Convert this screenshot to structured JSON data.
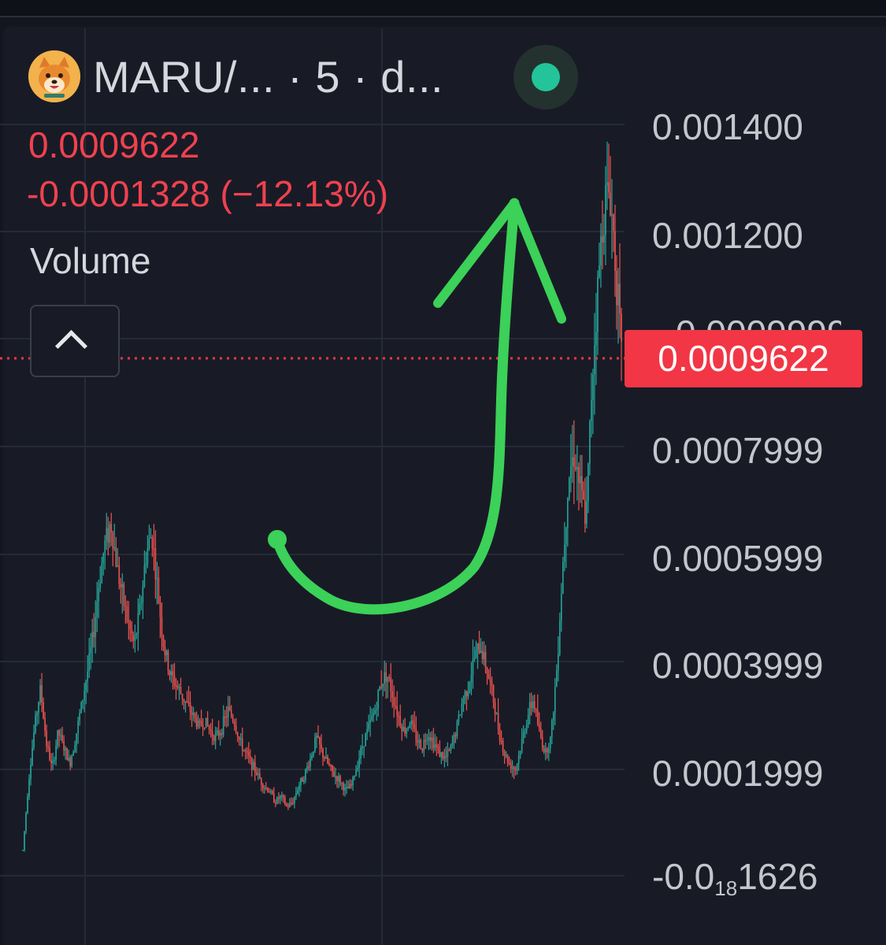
{
  "header": {
    "symbol": "MARU/... · 5 · d...",
    "logo": "shiba-inu-dog-logo",
    "live_indicator_color": "#23c49a"
  },
  "quote": {
    "price": "0.0009622",
    "change": "-0.0001328 (−12.13%)"
  },
  "indicator": {
    "label": "Volume"
  },
  "collapse_icon": "chevron-up-icon",
  "price_axis": {
    "labels": [
      "0.001400",
      "0.001200",
      "0.0007999",
      "0.0005999",
      "0.0003999",
      "0.0001999"
    ],
    "bottom_label": {
      "prefix": "-0.0",
      "subscript": "18",
      "suffix": "1626"
    },
    "current_price_tag": "0.0009622",
    "current_price_tag_color": "#f23645"
  },
  "colors": {
    "background": "#181b26",
    "up_candle": "#26a69a",
    "down_candle": "#ef5350",
    "annotation_arrow": "#3cd158",
    "price_line": "#f23645"
  },
  "chart_data": {
    "type": "candlestick",
    "interval": "5",
    "y_axis_labels": [
      0.0014,
      0.0012,
      0.0007999,
      0.0005999,
      0.0003999,
      0.0001999
    ],
    "ylim": [
      0.0,
      0.00142
    ],
    "last_price": 0.0009622,
    "change": -0.0001328,
    "change_pct": -12.13,
    "close_series": [
      5e-05,
      0.00018,
      0.00028,
      0.00035,
      0.00025,
      0.0002,
      0.00027,
      0.00024,
      0.00021,
      0.00026,
      0.00032,
      0.00038,
      0.00045,
      0.00055,
      0.00062,
      0.00066,
      0.00058,
      0.00052,
      0.00047,
      0.00043,
      0.0005,
      0.0006,
      0.00064,
      0.00053,
      0.00043,
      0.00038,
      0.00036,
      0.00034,
      0.00032,
      0.0003,
      0.00028,
      0.00029,
      0.00027,
      0.00026,
      0.00028,
      0.00031,
      0.00029,
      0.00025,
      0.00023,
      0.00021,
      0.00019,
      0.00017,
      0.00016,
      0.00014,
      0.00015,
      0.00013,
      0.00014,
      0.00017,
      0.00019,
      0.00022,
      0.00026,
      0.00023,
      0.00021,
      0.00019,
      0.00018,
      0.00016,
      0.00017,
      0.00021,
      0.00025,
      0.00028,
      0.00031,
      0.00036,
      0.00038,
      0.00034,
      0.0003,
      0.00027,
      0.00029,
      0.00026,
      0.00024,
      0.00027,
      0.00025,
      0.00023,
      0.00022,
      0.00024,
      0.00028,
      0.00033,
      0.00036,
      0.00041,
      0.00043,
      0.00039,
      0.00034,
      0.00028,
      0.00023,
      0.00021,
      0.0002,
      0.00025,
      0.0003,
      0.00033,
      0.00027,
      0.00023,
      0.00026,
      0.00039,
      0.00058,
      0.00075,
      0.00079,
      0.00072,
      0.00066,
      0.00093,
      0.0011,
      0.00125,
      0.00128,
      0.00115,
      0.00096
    ]
  }
}
